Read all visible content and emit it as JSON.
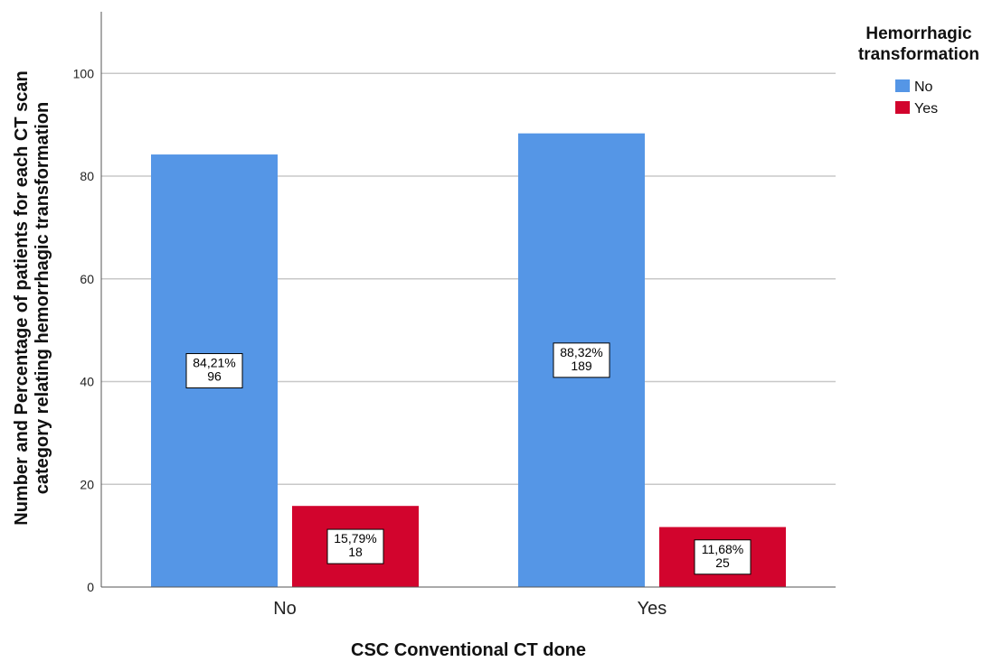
{
  "chart_data": {
    "type": "bar",
    "xlabel": "CSC Conventional CT done",
    "ylabel_lines": [
      "Number and Percentage of patients for each CT scan",
      "category relating hemorrhagic transformation"
    ],
    "categories": [
      "No",
      "Yes"
    ],
    "ylim": [
      0,
      112
    ],
    "yticks": [
      0,
      20,
      40,
      60,
      80,
      100
    ],
    "grid": "horizontal",
    "legend": {
      "title_lines": [
        "Hemorrhagic",
        "transformation"
      ],
      "position": "top-right"
    },
    "series": [
      {
        "name": "No",
        "color": "#5596E6",
        "values": [
          84.21,
          88.32
        ],
        "labels": [
          [
            "84,21%",
            "96"
          ],
          [
            "88,32%",
            "189"
          ]
        ]
      },
      {
        "name": "Yes",
        "color": "#D2042D",
        "values": [
          15.79,
          11.68
        ],
        "labels": [
          [
            "15,79%",
            "18"
          ],
          [
            "11,68%",
            "25"
          ]
        ]
      }
    ]
  }
}
